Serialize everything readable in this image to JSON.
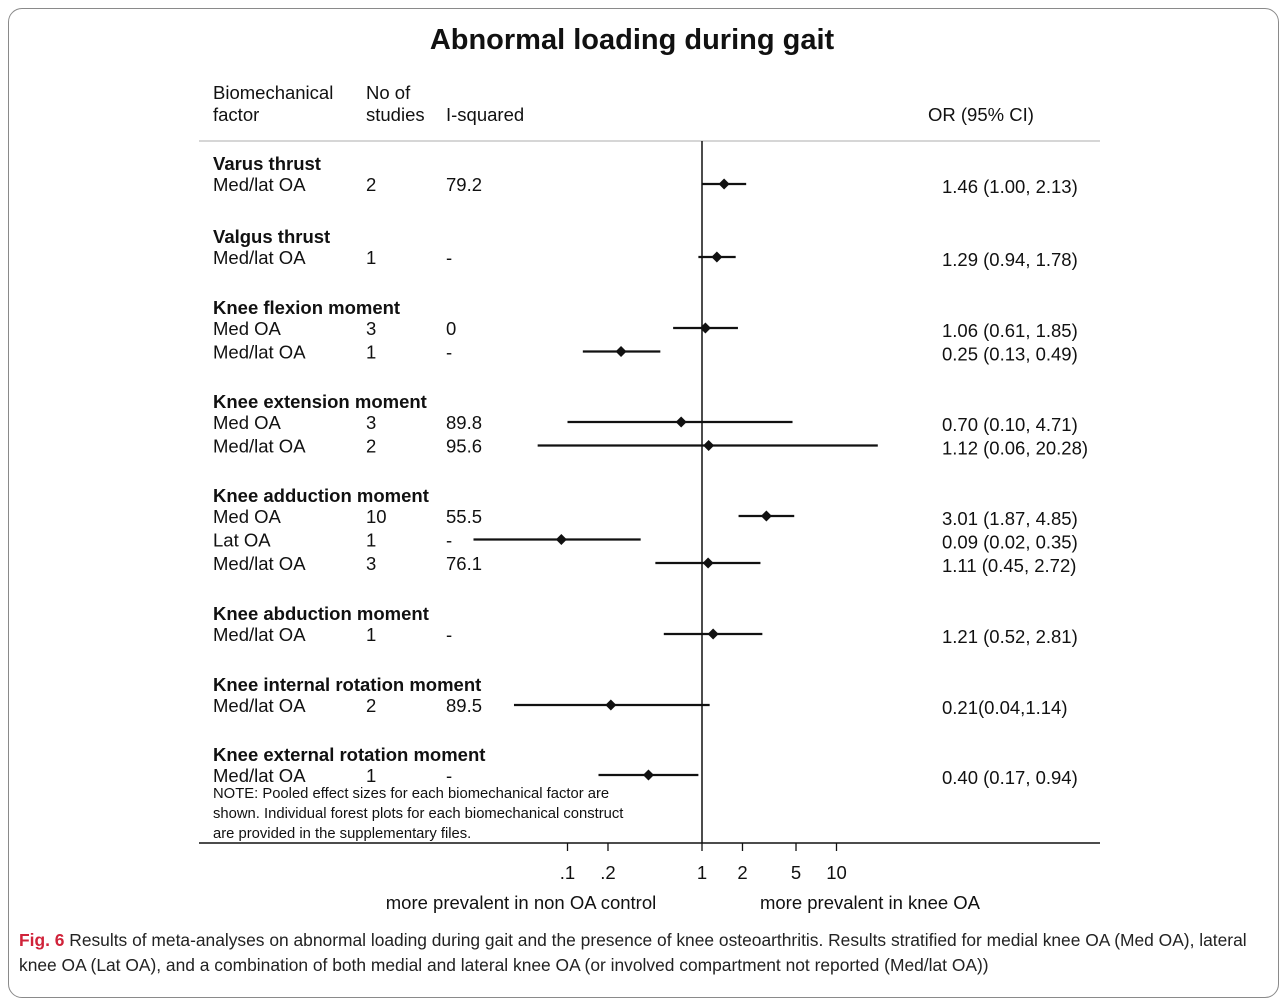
{
  "colors": {
    "frame": "#8a8a8a",
    "ink": "#111111",
    "caption_label": "#d0233a",
    "header_rule": "#c8c8c8"
  },
  "chart_data": {
    "type": "forest",
    "title": "Abnormal loading during gait",
    "x_scale": "log",
    "reference_line": 1,
    "headers": {
      "factor_1": "Biomechanical",
      "factor_2": "factor",
      "studies_1": "No of",
      "studies_2": "studies",
      "isq": "I-squared",
      "or": "OR (95% CI)"
    },
    "x_ticks": [
      ".1",
      ".2",
      "1",
      "2",
      "5",
      "10"
    ],
    "x_tick_values": [
      0.1,
      0.2,
      1,
      2,
      5,
      10
    ],
    "x_label_left": "more prevalent in non OA control",
    "x_label_right": "more prevalent in knee OA",
    "groups": [
      {
        "name": "Varus thrust",
        "rows": [
          {
            "label": "Med/lat OA",
            "studies": "2",
            "isq": "79.2",
            "or": 1.46,
            "lo": 1.0,
            "hi": 2.13,
            "ci_text": "1.46 (1.00, 2.13)"
          }
        ]
      },
      {
        "name": "Valgus thrust",
        "rows": [
          {
            "label": "Med/lat OA",
            "studies": "1",
            "isq": "-",
            "or": 1.29,
            "lo": 0.94,
            "hi": 1.78,
            "ci_text": "1.29 (0.94, 1.78)"
          }
        ]
      },
      {
        "name": "Knee flexion moment",
        "rows": [
          {
            "label": "Med OA",
            "studies": "3",
            "isq": "0",
            "or": 1.06,
            "lo": 0.61,
            "hi": 1.85,
            "ci_text": "1.06 (0.61, 1.85)"
          },
          {
            "label": "Med/lat OA",
            "studies": "1",
            "isq": "-",
            "or": 0.25,
            "lo": 0.13,
            "hi": 0.49,
            "ci_text": "0.25 (0.13, 0.49)"
          }
        ]
      },
      {
        "name": "Knee extension moment",
        "rows": [
          {
            "label": "Med OA",
            "studies": "3",
            "isq": "89.8",
            "or": 0.7,
            "lo": 0.1,
            "hi": 4.71,
            "ci_text": "0.70 (0.10, 4.71)"
          },
          {
            "label": "Med/lat OA",
            "studies": "2",
            "isq": "95.6",
            "or": 1.12,
            "lo": 0.06,
            "hi": 20.28,
            "ci_text": "1.12 (0.06, 20.28)"
          }
        ]
      },
      {
        "name": "Knee adduction moment",
        "rows": [
          {
            "label": "Med OA",
            "studies": "10",
            "isq": "55.5",
            "or": 3.01,
            "lo": 1.87,
            "hi": 4.85,
            "ci_text": "3.01 (1.87, 4.85)"
          },
          {
            "label": "Lat OA",
            "studies": "1",
            "isq": "-",
            "or": 0.09,
            "lo": 0.02,
            "hi": 0.35,
            "ci_text": "0.09 (0.02, 0.35)"
          },
          {
            "label": "Med/lat OA",
            "studies": "3",
            "isq": "76.1",
            "or": 1.11,
            "lo": 0.45,
            "hi": 2.72,
            "ci_text": "1.11 (0.45, 2.72)"
          }
        ]
      },
      {
        "name": "Knee abduction moment",
        "rows": [
          {
            "label": "Med/lat OA",
            "studies": "1",
            "isq": "-",
            "or": 1.21,
            "lo": 0.52,
            "hi": 2.81,
            "ci_text": "1.21 (0.52, 2.81)"
          }
        ]
      },
      {
        "name": "Knee internal rotation moment",
        "rows": [
          {
            "label": "Med/lat OA",
            "studies": "2",
            "isq": "89.5",
            "or": 0.21,
            "lo": 0.04,
            "hi": 1.14,
            "ci_text": "0.21(0.04,1.14)"
          }
        ]
      },
      {
        "name": "Knee external rotation moment",
        "rows": [
          {
            "label": "Med/lat OA",
            "studies": "1",
            "isq": "-",
            "or": 0.4,
            "lo": 0.17,
            "hi": 0.94,
            "ci_text": "0.40 (0.17, 0.94)"
          }
        ]
      }
    ],
    "note": [
      "NOTE: Pooled effect sizes for each biomechanical factor are",
      "shown. Individual forest plots for each biomechanical construct",
      "are provided in the supplementary files."
    ]
  },
  "caption": {
    "label": "Fig. 6",
    "text": " Results of meta-analyses on abnormal loading during gait and the presence of knee osteoarthritis. Results stratified for medial knee OA (Med OA), lateral knee OA (Lat OA), and a combination of both medial and lateral knee OA (or involved compartment not reported (Med/lat OA))"
  }
}
